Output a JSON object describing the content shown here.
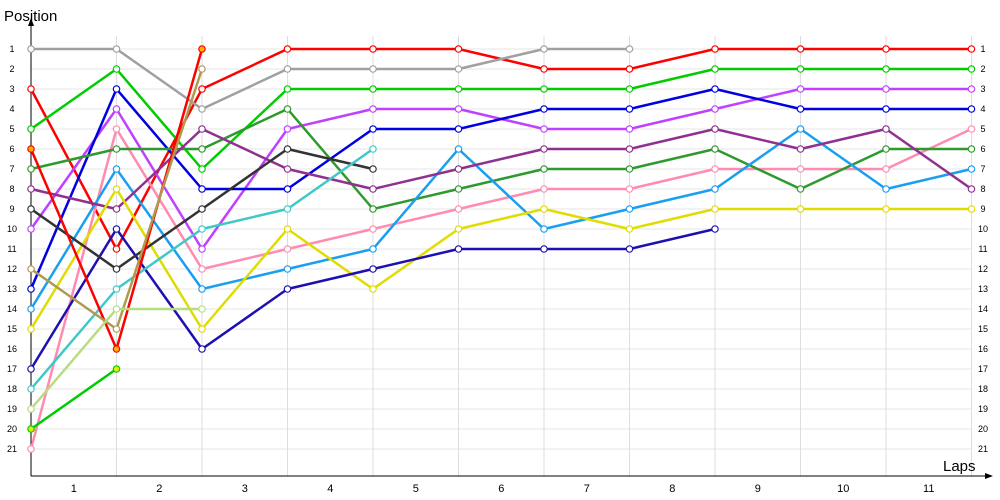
{
  "chart_data": {
    "type": "line",
    "ylabel": "Position",
    "xlabel": "Laps",
    "x_tick_labels": [
      "1",
      "2",
      "3",
      "4",
      "5",
      "6",
      "7",
      "8",
      "9",
      "10",
      "11"
    ],
    "y_tick_labels": [
      "1",
      "2",
      "3",
      "4",
      "5",
      "6",
      "7",
      "8",
      "9",
      "10",
      "11",
      "12",
      "13",
      "14",
      "15",
      "16",
      "17",
      "18",
      "19",
      "20",
      "21"
    ],
    "ylim": [
      1,
      21
    ],
    "x_points": [
      0,
      1,
      2,
      3,
      4,
      5,
      6,
      7,
      8,
      9,
      10,
      11
    ],
    "grid": true,
    "series": [
      {
        "color": "#ff0000",
        "marker_fill": "#ffffff",
        "positions": [
          3,
          11,
          3,
          1,
          1,
          1,
          2,
          2,
          1,
          1,
          1,
          1
        ]
      },
      {
        "color": "#00cc00",
        "marker_fill": "#ffffff",
        "positions": [
          5,
          2,
          7,
          3,
          3,
          3,
          3,
          3,
          2,
          2,
          2,
          2
        ]
      },
      {
        "color": "#c040ff",
        "marker_fill": "#ffffff",
        "positions": [
          10,
          4,
          11,
          5,
          4,
          4,
          5,
          5,
          4,
          3,
          3,
          3
        ]
      },
      {
        "color": "#0000e0",
        "marker_fill": "#ffffff",
        "positions": [
          13,
          3,
          8,
          8,
          5,
          5,
          4,
          4,
          3,
          4,
          4,
          4
        ]
      },
      {
        "color": "#ff8cb0",
        "marker_fill": "#ffffff",
        "positions": [
          21,
          5,
          12,
          11,
          10,
          9,
          8,
          8,
          7,
          7,
          7,
          5
        ]
      },
      {
        "color": "#2e9a2e",
        "marker_fill": "#ffffff",
        "positions": [
          7,
          6,
          6,
          4,
          9,
          8,
          7,
          7,
          6,
          8,
          6,
          6
        ]
      },
      {
        "color": "#1a9ff0",
        "marker_fill": "#ffffff",
        "positions": [
          14,
          7,
          13,
          12,
          11,
          6,
          10,
          9,
          8,
          5,
          8,
          7
        ]
      },
      {
        "color": "#903090",
        "marker_fill": "#ffffff",
        "positions": [
          8,
          9,
          5,
          7,
          8,
          7,
          6,
          6,
          5,
          6,
          5,
          8
        ]
      },
      {
        "color": "#e0dc00",
        "marker_fill": "#ffffff",
        "positions": [
          15,
          8,
          15,
          10,
          13,
          10,
          9,
          10,
          9,
          9,
          9,
          9
        ]
      },
      {
        "color": "#1e10b0",
        "marker_fill": "#ffffff",
        "positions": [
          17,
          10,
          16,
          13,
          12,
          11,
          11,
          11,
          10
        ]
      },
      {
        "color": "#a0a0a0",
        "marker_fill": "#ffffff",
        "positions": [
          1,
          1,
          4,
          2,
          2,
          2,
          1,
          1
        ]
      },
      {
        "color": "#333333",
        "marker_fill": "#ffffff",
        "positions": [
          9,
          12,
          9,
          6,
          7
        ]
      },
      {
        "color": "#40c8c8",
        "marker_fill": "#ffffff",
        "positions": [
          18,
          13,
          10,
          9,
          6
        ]
      },
      {
        "color": "#ff0000",
        "marker_fill": "#ffb000",
        "positions": [
          6,
          16,
          1
        ]
      },
      {
        "color": "#b09a50",
        "marker_fill": "#ffffff",
        "positions": [
          12,
          15,
          2
        ]
      },
      {
        "color": "#b8dc80",
        "marker_fill": "#ffffff",
        "positions": [
          19,
          14,
          14
        ]
      },
      {
        "color": "#00cc00",
        "marker_fill": "#e0f000",
        "positions": [
          20,
          17
        ]
      }
    ]
  }
}
